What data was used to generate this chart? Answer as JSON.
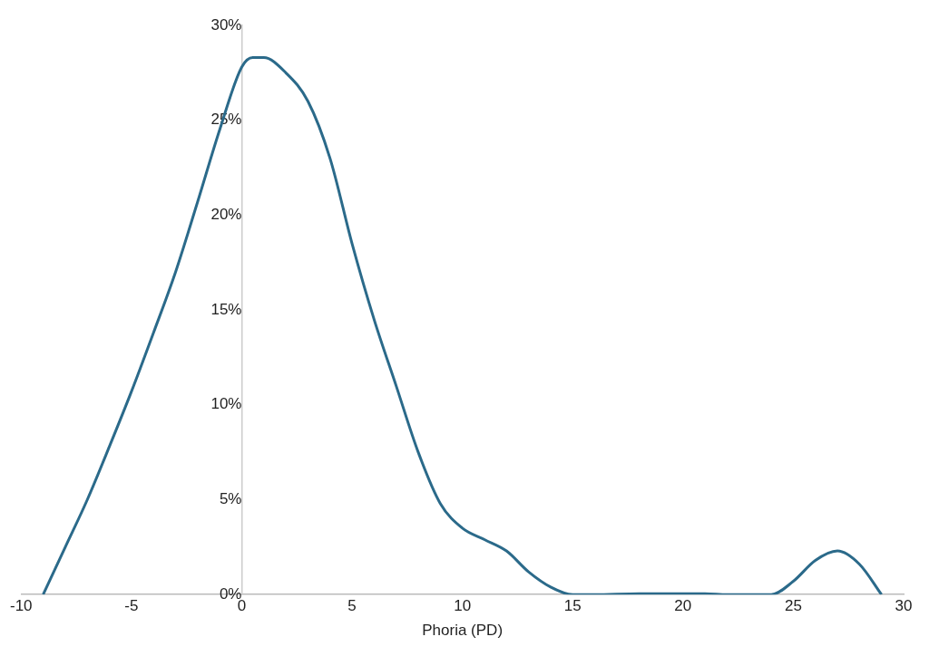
{
  "chart_data": {
    "type": "line",
    "xlabel": "Phoria (PD)",
    "x": [
      -9,
      -8,
      -7,
      -6,
      -5,
      -4,
      -3,
      -2,
      -1,
      0,
      0.5,
      1,
      2,
      3,
      4,
      5,
      6,
      7,
      8,
      9,
      10,
      11,
      12,
      13,
      14,
      15,
      16,
      18,
      20,
      21,
      22,
      24,
      25,
      26,
      27,
      28,
      29
    ],
    "series": [
      {
        "color": "#2b6a8a",
        "values": [
          0,
          2.5,
          5,
          7.8,
          10.7,
          13.8,
          17,
          20.7,
          24.5,
          27.8,
          28.3,
          28.3,
          27.5,
          26,
          23,
          18.5,
          14.5,
          11,
          7.5,
          4.8,
          3.5,
          2.9,
          2.3,
          1.2,
          0.4,
          0,
          0,
          0.05,
          0.05,
          0.05,
          0,
          0,
          0.7,
          1.8,
          2.3,
          1.6,
          0
        ]
      }
    ],
    "xlim": [
      -10,
      30
    ],
    "xticks": [
      -10,
      -5,
      0,
      5,
      10,
      15,
      20,
      25,
      30
    ],
    "ylim": [
      0,
      30
    ],
    "yticks": [
      {
        "value": 0,
        "label": "0%"
      },
      {
        "value": 5,
        "label": "5%"
      },
      {
        "value": 10,
        "label": "10%"
      },
      {
        "value": 15,
        "label": "15%"
      },
      {
        "value": 20,
        "label": "20%"
      },
      {
        "value": 25,
        "label": "25%"
      },
      {
        "value": 30,
        "label": "30%"
      }
    ],
    "grid": false,
    "legend": false,
    "marker": "none",
    "line_style": "solid"
  }
}
